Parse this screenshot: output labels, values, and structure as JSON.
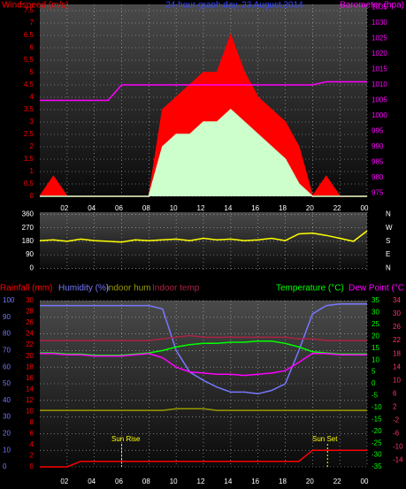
{
  "chart_data": [
    {
      "type": "line",
      "title": "24 hour graph day, 23 August 2014",
      "y_label": "Windspeed (m/s)",
      "y2_label": "Barometer (hpa)",
      "x": [
        0,
        1,
        2,
        3,
        4,
        5,
        6,
        7,
        8,
        9,
        10,
        11,
        12,
        13,
        14,
        15,
        16,
        17,
        18,
        19,
        20,
        21,
        22,
        23,
        24
      ],
      "xlim": [
        0,
        24
      ],
      "xticks": [
        {
          "value": 2,
          "label": "02"
        },
        {
          "value": 4,
          "label": "04"
        },
        {
          "value": 6,
          "label": "06"
        },
        {
          "value": 8,
          "label": "08"
        },
        10,
        12,
        14,
        16,
        18,
        20,
        22,
        {
          "value": 24,
          "label": "00"
        }
      ],
      "ylim": [
        0,
        7.75
      ],
      "yticks": [
        0,
        0.5,
        1,
        1.5,
        2,
        2.5,
        3,
        3.5,
        4,
        4.5,
        5,
        5.5,
        6,
        6.5,
        7,
        7.5
      ],
      "ycolor": "#ff0000",
      "y2lim": [
        974,
        1036
      ],
      "y2ticks": [
        975,
        980,
        985,
        990,
        995,
        1000,
        1005,
        1010,
        1015,
        1020,
        1025,
        1030,
        1035
      ],
      "y2color": "#ff00ff",
      "grid": true,
      "series": [
        {
          "color": "#ff0000",
          "fill": true,
          "values": [
            0,
            0.8,
            0,
            0,
            0,
            0,
            0,
            0,
            0,
            3.5,
            4,
            4.5,
            5,
            5,
            6.5,
            5,
            4,
            3.5,
            3,
            2,
            0,
            0.8,
            0,
            0,
            0
          ]
        },
        {
          "color": "#ccffcc",
          "fill": true,
          "values": [
            0,
            0,
            0,
            0,
            0,
            0,
            0,
            0,
            0,
            2,
            2.5,
            2.5,
            3,
            3,
            3.5,
            3,
            2.5,
            2,
            1.5,
            0.5,
            0,
            0,
            0,
            0,
            0
          ]
        },
        {
          "color": "#ff00ff",
          "axis": "y2",
          "values": [
            1005,
            1005,
            1005,
            1005,
            1005,
            1005,
            1010,
            1010,
            1010,
            1010,
            1010,
            1010,
            1010,
            1010,
            1010,
            1010,
            1010,
            1010,
            1010,
            1010,
            1010,
            1011,
            1011,
            1011,
            1011
          ]
        }
      ]
    },
    {
      "type": "line",
      "x": [
        0,
        1,
        2,
        3,
        4,
        5,
        6,
        7,
        8,
        9,
        10,
        11,
        12,
        13,
        14,
        15,
        16,
        17,
        18,
        19,
        20,
        21,
        22,
        23,
        24
      ],
      "xlim": [
        0,
        24
      ],
      "ylim": [
        -10,
        375
      ],
      "yticks": [
        0,
        90,
        180,
        270,
        360
      ],
      "ycolor": "#ffffff",
      "y2lim": [
        -10,
        375
      ],
      "y2ticks": [
        {
          "value": 360,
          "label": "N"
        },
        {
          "value": 270,
          "label": "W"
        },
        {
          "value": 180,
          "label": "S"
        },
        {
          "value": 90,
          "label": "E"
        },
        {
          "value": 0,
          "label": "N"
        }
      ],
      "y2color": "#ffffff",
      "grid": true,
      "series": [
        {
          "color": "#ffff00",
          "values": [
            185,
            190,
            180,
            195,
            185,
            180,
            175,
            190,
            185,
            190,
            195,
            185,
            200,
            190,
            195,
            185,
            190,
            200,
            185,
            230,
            235,
            220,
            200,
            180,
            250
          ]
        }
      ]
    },
    {
      "type": "line",
      "x": [
        0,
        1,
        2,
        3,
        4,
        5,
        6,
        7,
        8,
        9,
        10,
        11,
        12,
        13,
        14,
        15,
        16,
        17,
        18,
        19,
        20,
        21,
        22,
        23,
        24
      ],
      "xlim": [
        0,
        24
      ],
      "xticks": [
        {
          "value": 2,
          "label": "02"
        },
        {
          "value": 4,
          "label": "04"
        },
        {
          "value": 6,
          "label": "06"
        },
        {
          "value": 8,
          "label": "08"
        },
        10,
        12,
        14,
        16,
        18,
        20,
        22,
        {
          "value": 24,
          "label": "00"
        }
      ],
      "ylim": [
        0,
        100
      ],
      "yticks": [
        0,
        10,
        20,
        30,
        40,
        50,
        60,
        70,
        80,
        90,
        100
      ],
      "ycolor": "#7777ff",
      "y3lim": [
        0,
        30
      ],
      "y3ticks": [
        0,
        2,
        4,
        6,
        8,
        10,
        12,
        14,
        16,
        18,
        20,
        22,
        24,
        26,
        28,
        30
      ],
      "y3color": "#ff0000",
      "y2lim": [
        -35,
        35
      ],
      "y2ticks": [
        35,
        30,
        25,
        20,
        15,
        10,
        5,
        0,
        -5,
        -10,
        -15,
        -20,
        -25,
        -30,
        -35
      ],
      "y2color": "#00ff00",
      "y4lim": [
        -16,
        34
      ],
      "y4ticks": [
        34,
        30,
        26,
        22,
        18,
        14,
        10,
        6,
        2,
        -2,
        -6,
        -10,
        -14
      ],
      "y4color": "#ff3366",
      "grid": true,
      "annotations": [
        "Sun Rise",
        "Sun Set"
      ],
      "series": [
        {
          "name": "Rainfall (mm)",
          "color": "#ff0000",
          "axis": "y3",
          "values": [
            0,
            0,
            0,
            1,
            1,
            1,
            1,
            1,
            1,
            1,
            1,
            1,
            1,
            1,
            1,
            1,
            1,
            1,
            1,
            1,
            3,
            3,
            3,
            3,
            3
          ]
        },
        {
          "name": "Humidity (%)",
          "color": "#7777ff",
          "values": [
            97,
            97,
            97,
            97,
            97,
            97,
            97,
            97,
            97,
            95,
            70,
            57,
            52,
            48,
            45,
            45,
            44,
            46,
            50,
            70,
            92,
            97,
            98,
            98,
            98
          ]
        },
        {
          "name": "Indoor hum",
          "color": "#999900",
          "values": [
            34,
            34,
            34,
            34,
            34,
            34,
            34,
            34,
            34,
            34,
            35,
            35,
            35,
            34,
            34,
            34,
            34,
            34,
            34,
            34,
            34,
            34,
            34,
            34,
            34
          ]
        },
        {
          "name": "Indoor temp",
          "color": "#aa2244",
          "axis": "y4",
          "values": [
            22,
            22,
            22,
            22,
            22,
            22,
            22,
            22,
            22,
            22.5,
            23,
            23.5,
            23,
            23,
            23,
            23,
            23,
            23,
            23,
            22.5,
            22.5,
            22,
            22,
            22,
            22
          ]
        },
        {
          "name": "Temperature (°C)",
          "color": "#00ff00",
          "axis": "y2",
          "values": [
            13,
            13,
            12.5,
            12.5,
            12,
            12,
            12,
            12.5,
            13,
            14,
            15.5,
            16.5,
            17,
            17,
            17.5,
            17.5,
            18,
            18,
            17,
            15.5,
            13.5,
            13,
            12.5,
            12.5,
            12.5
          ]
        },
        {
          "name": "Dew Point (°C",
          "color": "#ff00ff",
          "axis": "y2",
          "values": [
            12.7,
            12.7,
            12.2,
            12.2,
            11.7,
            11.7,
            11.7,
            12.2,
            12.7,
            11,
            7,
            5,
            4.5,
            4,
            4,
            3.5,
            4,
            4.5,
            5.5,
            9,
            12.8,
            12.7,
            12.2,
            12.2,
            12.2
          ]
        }
      ]
    }
  ]
}
